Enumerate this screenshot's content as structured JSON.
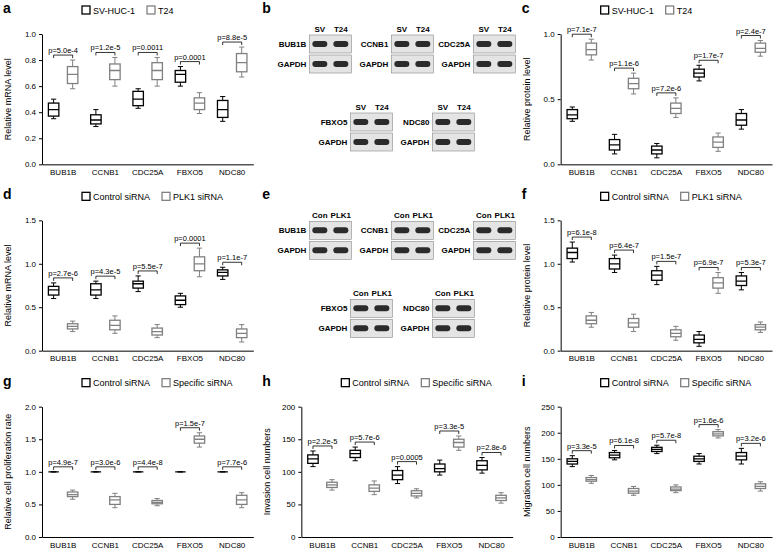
{
  "chart_data": [
    {
      "type": "box",
      "label": "a",
      "y_label": "Relative mRNA level",
      "categories": [
        "BUB1B",
        "CCNB1",
        "CDC25A",
        "FBXO5",
        "NDC80"
      ],
      "ylim": [
        0,
        1
      ],
      "yticks": [
        {
          "value": 0,
          "label": "0.0"
        },
        0.2,
        0.4,
        0.6,
        0.8,
        {
          "value": 1,
          "label": "1.0"
        }
      ],
      "series": [
        {
          "name": "SV-HUC-1",
          "color": "#000000",
          "values": [
            [
              0.35,
              0.37,
              0.42,
              0.47,
              0.5
            ],
            [
              0.29,
              0.31,
              0.34,
              0.38,
              0.42
            ],
            [
              0.43,
              0.45,
              0.5,
              0.56,
              0.58
            ],
            [
              0.6,
              0.63,
              0.69,
              0.72,
              0.75
            ],
            [
              0.33,
              0.36,
              0.42,
              0.49,
              0.52
            ]
          ]
        },
        {
          "name": "T24",
          "color": "#808080",
          "values": [
            [
              0.58,
              0.62,
              0.69,
              0.75,
              0.8
            ],
            [
              0.6,
              0.65,
              0.72,
              0.77,
              0.82
            ],
            [
              0.6,
              0.65,
              0.72,
              0.78,
              0.82
            ],
            [
              0.39,
              0.42,
              0.47,
              0.51,
              0.55
            ],
            [
              0.67,
              0.71,
              0.78,
              0.85,
              0.9
            ]
          ]
        }
      ],
      "pvalues": [
        "p=5.0e-4",
        "p=1.2e-5",
        "p=0.0011",
        "p=0.0001",
        "p=8.8e-5"
      ]
    },
    {
      "type": "blot",
      "label": "b",
      "lanes": [
        "SV",
        "T24"
      ],
      "loading_control": "GAPDH",
      "proteins": [
        "BUB1B",
        "CCNB1",
        "CDC25A",
        "FBXO5",
        "NDC80"
      ]
    },
    {
      "type": "box",
      "label": "c",
      "y_label": "Relative protein level",
      "categories": [
        "BUB1B",
        "CCNB1",
        "CDC25A",
        "FBXO5",
        "NDC80"
      ],
      "ylim": [
        0,
        1
      ],
      "yticks": [
        {
          "value": 0,
          "label": "0.0"
        },
        0.5,
        {
          "value": 1,
          "label": "1.0"
        }
      ],
      "series": [
        {
          "name": "SV-HUC-1",
          "color": "#000000",
          "values": [
            [
              0.33,
              0.35,
              0.38,
              0.42,
              0.44
            ],
            [
              0.08,
              0.11,
              0.15,
              0.19,
              0.23
            ],
            [
              0.05,
              0.08,
              0.11,
              0.14,
              0.16
            ],
            [
              0.64,
              0.67,
              0.7,
              0.73,
              0.76
            ],
            [
              0.27,
              0.3,
              0.34,
              0.39,
              0.42
            ]
          ]
        },
        {
          "name": "T24",
          "color": "#808080",
          "values": [
            [
              0.8,
              0.84,
              0.88,
              0.93,
              0.96
            ],
            [
              0.54,
              0.58,
              0.62,
              0.66,
              0.7
            ],
            [
              0.36,
              0.39,
              0.43,
              0.47,
              0.51
            ],
            [
              0.1,
              0.13,
              0.17,
              0.21,
              0.24
            ],
            [
              0.83,
              0.86,
              0.89,
              0.93,
              0.95
            ]
          ]
        }
      ],
      "pvalues": [
        "p=7.1e-7",
        "p=1.1e-6",
        "p=7.2e-6",
        "p=1.7e-7",
        "p=2.4e-7"
      ]
    },
    {
      "type": "box",
      "label": "d",
      "y_label": "Relative mRNA level",
      "categories": [
        "BUB1B",
        "CCNB1",
        "CDC25A",
        "FBXO5",
        "NDC80"
      ],
      "ylim": [
        0,
        1.5
      ],
      "yticks": [
        {
          "value": 0,
          "label": "0.0"
        },
        0.5,
        {
          "value": 1,
          "label": "1.0"
        },
        1.5
      ],
      "series": [
        {
          "name": "Control siRNA",
          "color": "#000000",
          "values": [
            [
              0.6,
              0.64,
              0.7,
              0.74,
              0.78
            ],
            [
              0.6,
              0.64,
              0.7,
              0.77,
              0.8
            ],
            [
              0.68,
              0.72,
              0.77,
              0.8,
              0.86
            ],
            [
              0.5,
              0.53,
              0.58,
              0.63,
              0.66
            ],
            [
              0.82,
              0.86,
              0.9,
              0.93,
              0.96
            ]
          ]
        },
        {
          "name": "PLK1 siRNA",
          "color": "#808080",
          "values": [
            [
              0.22,
              0.25,
              0.28,
              0.31,
              0.34
            ],
            [
              0.2,
              0.24,
              0.29,
              0.35,
              0.4
            ],
            [
              0.15,
              0.18,
              0.22,
              0.26,
              0.3
            ],
            [
              0.85,
              0.92,
              1.0,
              1.08,
              1.18
            ],
            [
              0.1,
              0.15,
              0.2,
              0.25,
              0.3
            ]
          ]
        }
      ],
      "pvalues": [
        "p=2.7e-6",
        "p=4.3e-5",
        "p=5.5e-7",
        "p=0.0001",
        "p=1.1e-7"
      ]
    },
    {
      "type": "blot",
      "label": "e",
      "lanes": [
        "Con",
        "PLK1"
      ],
      "loading_control": "GAPDH",
      "proteins": [
        "BUB1B",
        "CCNB1",
        "CDC25A",
        "FBXO5",
        "NDC80"
      ]
    },
    {
      "type": "box",
      "label": "f",
      "y_label": "Relative protein level",
      "categories": [
        "BUB1B",
        "CCNB1",
        "CDC25A",
        "FBXO5",
        "NDC80"
      ],
      "ylim": [
        0,
        1.5
      ],
      "yticks": [
        {
          "value": 0,
          "label": "0.0"
        },
        0.5,
        {
          "value": 1,
          "label": "1.0"
        },
        1.5
      ],
      "series": [
        {
          "name": "Control siRNA",
          "color": "#000000",
          "values": [
            [
              1.02,
              1.06,
              1.13,
              1.18,
              1.25
            ],
            [
              0.9,
              0.94,
              1.0,
              1.06,
              1.1
            ],
            [
              0.76,
              0.81,
              0.87,
              0.92,
              0.97
            ],
            [
              0.05,
              0.09,
              0.13,
              0.18,
              0.22
            ],
            [
              0.7,
              0.75,
              0.8,
              0.86,
              0.9
            ]
          ]
        },
        {
          "name": "PLK1 siRNA",
          "color": "#808080",
          "values": [
            [
              0.27,
              0.31,
              0.35,
              0.4,
              0.44
            ],
            [
              0.22,
              0.27,
              0.32,
              0.37,
              0.42
            ],
            [
              0.12,
              0.16,
              0.2,
              0.24,
              0.28
            ],
            [
              0.66,
              0.72,
              0.78,
              0.84,
              0.9
            ],
            [
              0.21,
              0.24,
              0.27,
              0.3,
              0.33
            ]
          ]
        }
      ],
      "pvalues": [
        "p=6.1e-8",
        "p=6.4e-7",
        "p=1.5e-7",
        "p=6.9e-7",
        "p=5.3e-7"
      ]
    },
    {
      "type": "box",
      "label": "g",
      "y_label": "Relative cell proliferation rate",
      "categories": [
        "BUB1B",
        "CCNB1",
        "CDC25A",
        "FBXO5",
        "NDC80"
      ],
      "ylim": [
        0,
        2
      ],
      "yticks": [
        {
          "value": 0,
          "label": "0.0"
        },
        0.5,
        {
          "value": 1,
          "label": "1.0"
        },
        1.5,
        {
          "value": 2,
          "label": "2.0"
        }
      ],
      "series": [
        {
          "name": "Control siRNA",
          "color": "#000000",
          "values": [
            [
              1,
              1,
              1,
              1,
              1
            ],
            [
              1,
              1,
              1,
              1,
              1
            ],
            [
              1,
              1,
              1,
              1,
              1
            ],
            [
              1,
              1,
              1,
              1,
              1
            ],
            [
              1,
              1,
              1,
              1,
              1
            ]
          ]
        },
        {
          "name": "Specific siRNA",
          "color": "#808080",
          "values": [
            [
              0.58,
              0.62,
              0.65,
              0.69,
              0.72
            ],
            [
              0.45,
              0.5,
              0.57,
              0.62,
              0.67
            ],
            [
              0.48,
              0.51,
              0.53,
              0.56,
              0.59
            ],
            [
              1.38,
              1.44,
              1.5,
              1.55,
              1.6
            ],
            [
              0.45,
              0.5,
              0.57,
              0.64,
              0.68
            ]
          ]
        }
      ],
      "pvalues": [
        "p=4.9e-7",
        "p=3.0e-6",
        "p=4.4e-8",
        "p=1.5e-7",
        "p=7.7e-6"
      ]
    },
    {
      "type": "box",
      "label": "h",
      "y_label": "Invasion cell numbers",
      "categories": [
        "BUB1B",
        "CCNB1",
        "CDC25A",
        "FBXO5",
        "NDC80"
      ],
      "ylim": [
        0,
        200
      ],
      "yticks": [
        0,
        50,
        100,
        150,
        200
      ],
      "series": [
        {
          "name": "Control siRNA",
          "color": "#000000",
          "values": [
            [
              108,
              113,
              120,
              126,
              132
            ],
            [
              117,
              122,
              128,
              133,
              138
            ],
            [
              82,
              88,
              95,
              102,
              108
            ],
            [
              95,
              100,
              105,
              112,
              118
            ],
            [
              98,
              103,
              110,
              117,
              122
            ]
          ]
        },
        {
          "name": "Specific siRNA",
          "color": "#808080",
          "values": [
            [
              72,
              76,
              80,
              84,
              88
            ],
            [
              65,
              70,
              75,
              80,
              86
            ],
            [
              60,
              63,
              67,
              71,
              74
            ],
            [
              133,
              138,
              145,
              150,
              155
            ],
            [
              52,
              56,
              60,
              64,
              68
            ]
          ]
        }
      ],
      "pvalues": [
        "p=2.2e-5",
        "p=5.7e-6",
        "p=0.0005",
        "p=3.3e-5",
        "p=2.8e-6"
      ]
    },
    {
      "type": "box",
      "label": "i",
      "y_label": "Migration cell numbers",
      "categories": [
        "BUB1B",
        "CCNB1",
        "CDC25A",
        "FBXO5",
        "NDC80"
      ],
      "ylim": [
        0,
        250
      ],
      "yticks": [
        0,
        50,
        100,
        150,
        200,
        250
      ],
      "series": [
        {
          "name": "Control siRNA",
          "color": "#000000",
          "values": [
            [
              135,
              140,
              145,
              150,
              156
            ],
            [
              148,
              152,
              157,
              162,
              166
            ],
            [
              160,
              164,
              168,
              172,
              176
            ],
            [
              140,
              145,
              150,
              155,
              160
            ],
            [
              140,
              148,
              155,
              162,
              170
            ]
          ]
        },
        {
          "name": "Specific siRNA",
          "color": "#808080",
          "values": [
            [
              103,
              107,
              110,
              114,
              118
            ],
            [
              80,
              84,
              88,
              93,
              97
            ],
            [
              85,
              89,
              92,
              96,
              100
            ],
            [
              190,
              194,
              198,
              202,
              206
            ],
            [
              88,
              93,
              97,
              102,
              106
            ]
          ]
        }
      ],
      "pvalues": [
        "p=3.3e-5",
        "p=6.1e-8",
        "p=5.7e-8",
        "p=1.6e-6",
        "p=3.2e-6"
      ]
    }
  ]
}
